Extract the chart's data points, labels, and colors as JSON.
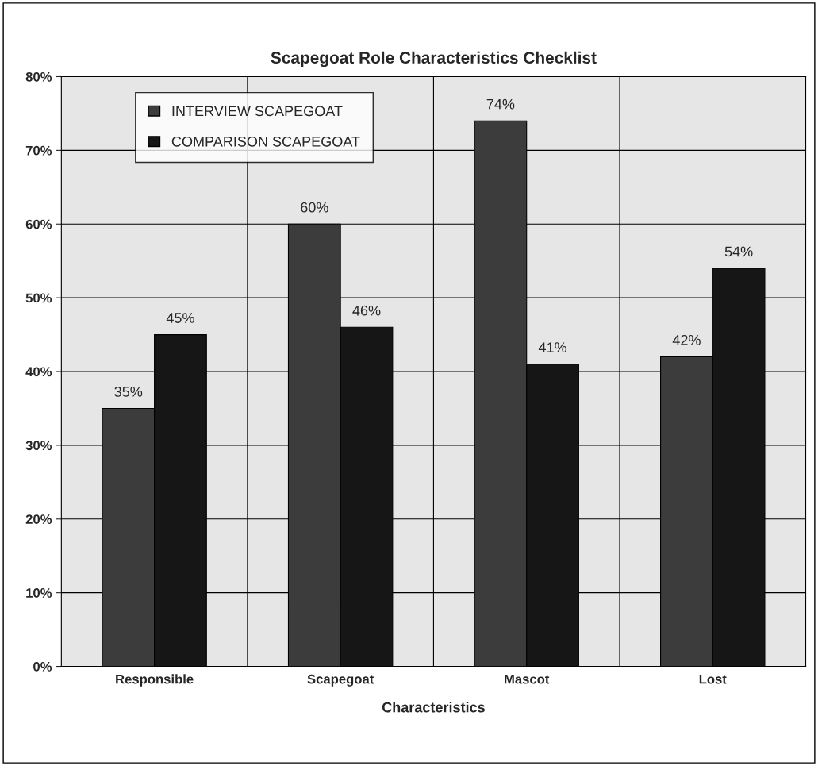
{
  "chart_data": {
    "type": "bar",
    "title": "Scapegoat Role Characteristics Checklist",
    "xlabel": "Characteristics",
    "categories": [
      "Responsible",
      "Scapegoat",
      "Mascot",
      "Lost"
    ],
    "series": [
      {
        "name": "INTERVIEW SCAPEGOAT",
        "color": "#3c3c3c",
        "values": [
          35,
          60,
          74,
          42
        ],
        "value_labels": [
          "35%",
          "60%",
          "74%",
          "42%"
        ]
      },
      {
        "name": "COMPARISON SCAPEGOAT",
        "color": "#161616",
        "values": [
          45,
          46,
          41,
          54
        ],
        "value_labels": [
          "45%",
          "46%",
          "41%",
          "54%"
        ]
      }
    ],
    "ylim": [
      0,
      80
    ],
    "yticks": [
      {
        "value": 0,
        "label": "0%"
      },
      {
        "value": 10,
        "label": "10%"
      },
      {
        "value": 20,
        "label": "20%"
      },
      {
        "value": 30,
        "label": "30%"
      },
      {
        "value": 40,
        "label": "40%"
      },
      {
        "value": 50,
        "label": "50%"
      },
      {
        "value": 60,
        "label": "60%"
      },
      {
        "value": 70,
        "label": "70%"
      },
      {
        "value": 80,
        "label": "80%"
      }
    ],
    "grid": true,
    "legend": "top left"
  }
}
